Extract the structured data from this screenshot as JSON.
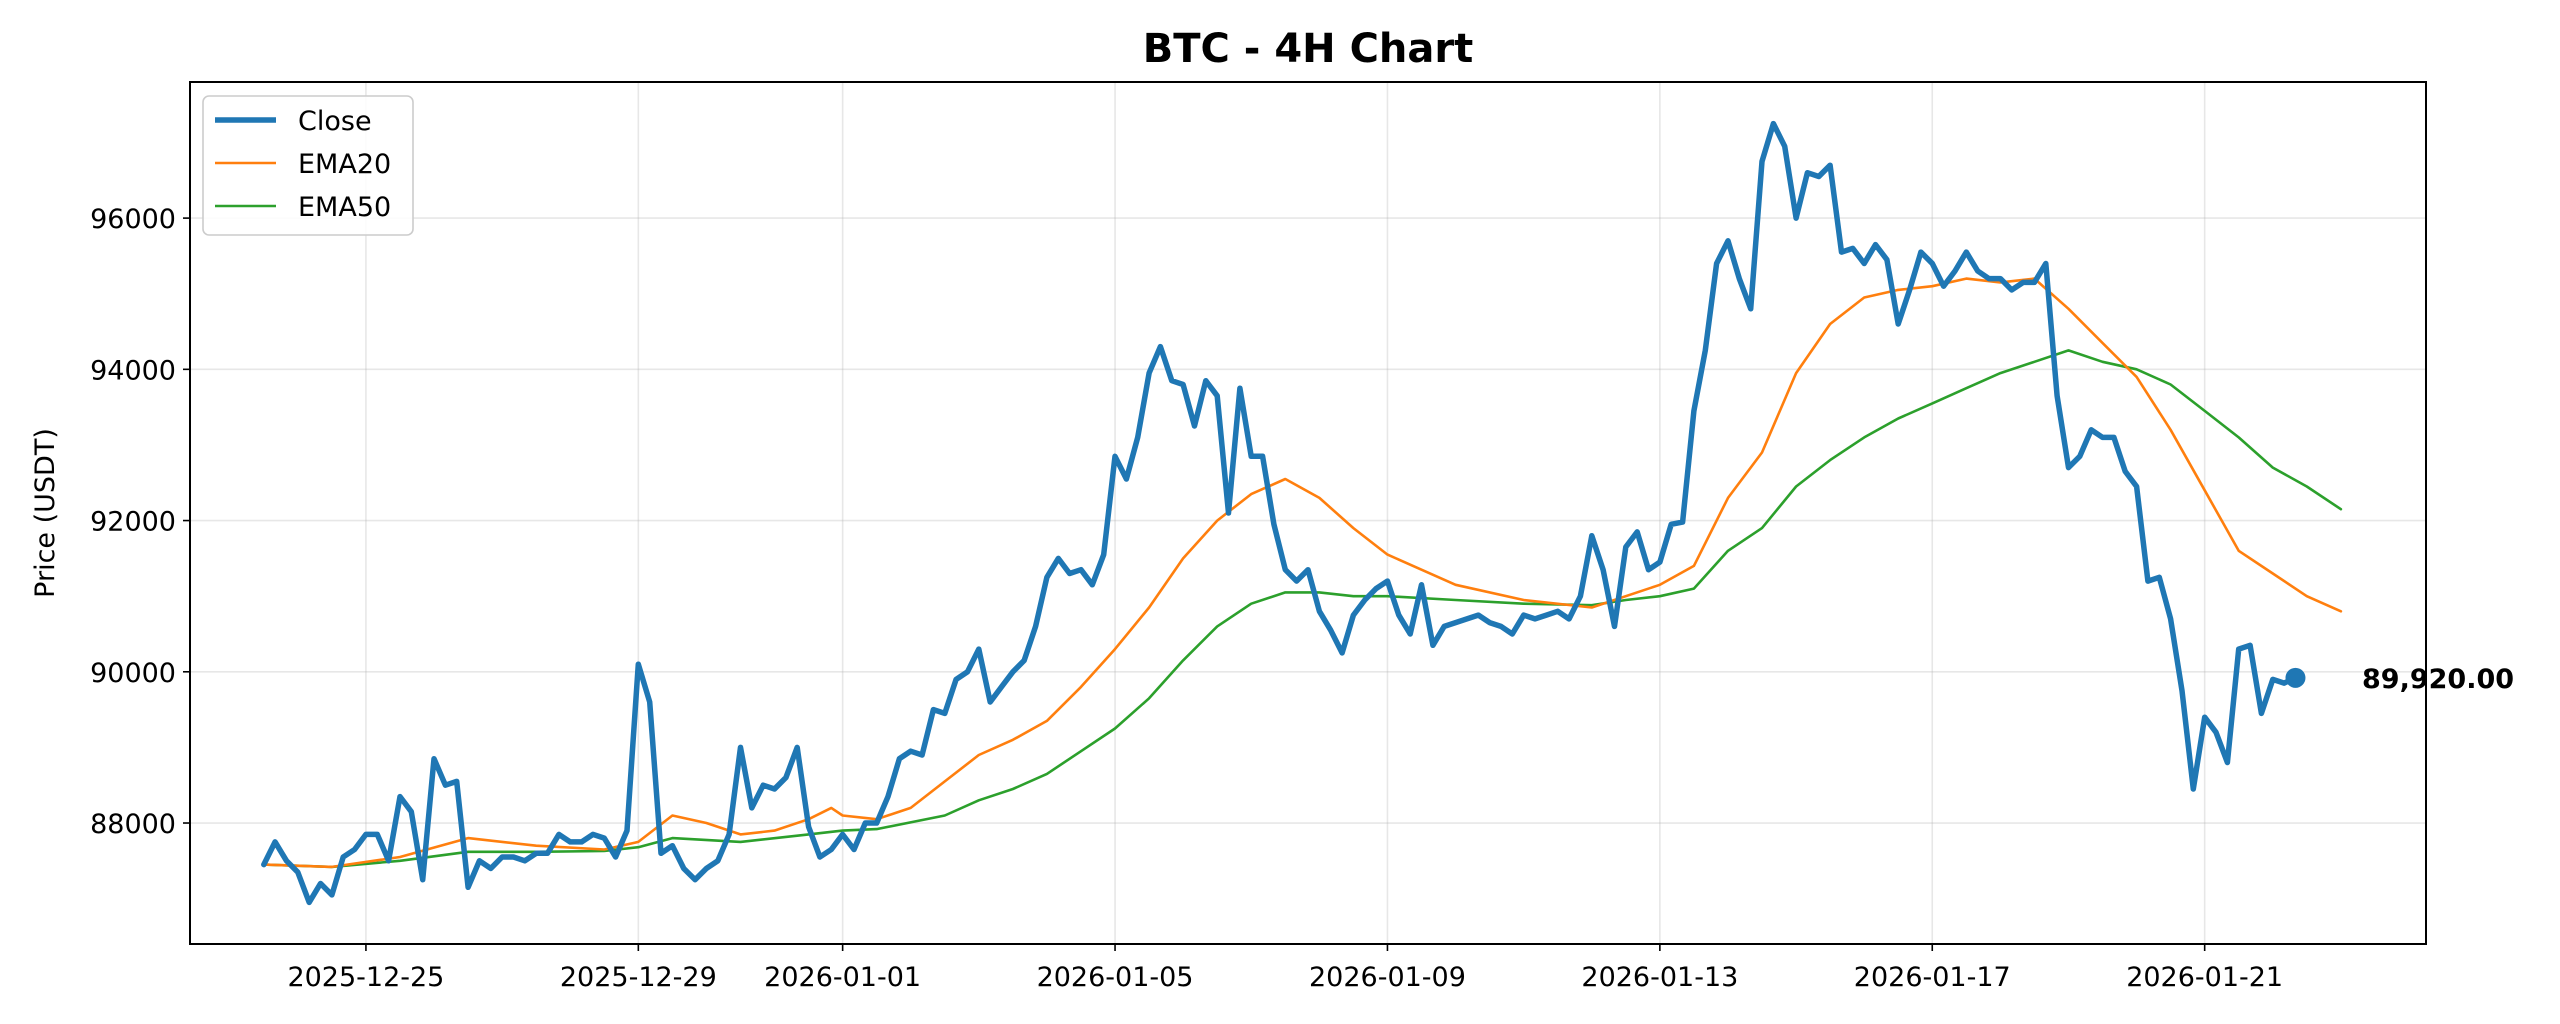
{
  "chart_data": {
    "type": "line",
    "title": "BTC - 4H Chart",
    "xlabel": "",
    "ylabel": "Price (USDT)",
    "ylim": [
      86400,
      97800
    ],
    "xlim": [
      "2025-12-22T10:00",
      "2026-01-24T06:00"
    ],
    "yticks": [
      88000,
      90000,
      92000,
      94000,
      96000
    ],
    "xticks": [
      "2025-12-25",
      "2025-12-29",
      "2026-01-01",
      "2026-01-05",
      "2026-01-09",
      "2026-01-13",
      "2026-01-17",
      "2026-01-21"
    ],
    "grid": true,
    "legend_position": "top-left",
    "colors": {
      "close": "#1f77b4",
      "ema20": "#ff7f0e",
      "ema50": "#2ca02c"
    },
    "last_value_label": "89,920.00",
    "last_value": 89920,
    "series": [
      {
        "name": "Close",
        "x_start": "2025-12-23T12:00",
        "interval_hours": 4,
        "values": [
          87450,
          87750,
          87500,
          87350,
          86950,
          87200,
          87050,
          87550,
          87650,
          87850,
          87850,
          87500,
          88350,
          88150,
          87250,
          88850,
          88500,
          88550,
          87150,
          87500,
          87400,
          87550,
          87550,
          87500,
          87600,
          87600,
          87850,
          87750,
          87750,
          87850,
          87800,
          87550,
          87900,
          90100,
          89600,
          87600,
          87700,
          87400,
          87250,
          87400,
          87500,
          87850,
          89000,
          88200,
          88500,
          88450,
          88600,
          89000,
          87950,
          87550,
          87650,
          87850,
          87650,
          88000,
          88000,
          88350,
          88850,
          88950,
          88900,
          89500,
          89450,
          89900,
          90000,
          90300,
          89600,
          89800,
          90000,
          90150,
          90600,
          91250,
          91500,
          91300,
          91350,
          91150,
          91550,
          92850,
          92550,
          93100,
          93950,
          94300,
          93850,
          93800,
          93250,
          93850,
          93650,
          92100,
          93750,
          92850,
          92850,
          91950,
          91350,
          91200,
          91350,
          90800,
          90550,
          90250,
          90750,
          90950,
          91100,
          91200,
          90750,
          90500,
          91150,
          90350,
          90600,
          90650,
          90700,
          90750,
          90650,
          90600,
          90500,
          90750,
          90700,
          90750,
          90800,
          90700,
          91000,
          91800,
          91350,
          90600,
          91650,
          91850,
          91350,
          91450,
          91950,
          91980,
          93450,
          94250,
          95400,
          95700,
          95200,
          94800,
          96750,
          97250,
          96950,
          96000,
          96600,
          96550,
          96700,
          95550,
          95600,
          95400,
          95650,
          95450,
          94600,
          95050,
          95550,
          95400,
          95100,
          95300,
          95550,
          95300,
          95200,
          95200,
          95050,
          95150,
          95150,
          95400,
          93650,
          92700,
          92850,
          93200,
          93100,
          93100,
          92650,
          92450,
          91200,
          91250,
          90700,
          89750,
          88450,
          89400,
          89200,
          88800,
          90300,
          90350,
          89450,
          89900,
          89850,
          89920
        ]
      },
      {
        "name": "EMA20",
        "points": [
          [
            "2025-12-23T12:00",
            87450
          ],
          [
            "2025-12-24T12:00",
            87420
          ],
          [
            "2025-12-25T12:00",
            87550
          ],
          [
            "2025-12-26T12:00",
            87800
          ],
          [
            "2025-12-27T12:00",
            87700
          ],
          [
            "2025-12-28T12:00",
            87650
          ],
          [
            "2025-12-29T00:00",
            87750
          ],
          [
            "2025-12-29T12:00",
            88100
          ],
          [
            "2025-12-30T00:00",
            88000
          ],
          [
            "2025-12-30T12:00",
            87850
          ],
          [
            "2025-12-31T00:00",
            87900
          ],
          [
            "2025-12-31T12:00",
            88050
          ],
          [
            "2025-12-31T20:00",
            88200
          ],
          [
            "2026-01-01T00:00",
            88100
          ],
          [
            "2026-01-01T12:00",
            88050
          ],
          [
            "2026-01-02T00:00",
            88200
          ],
          [
            "2026-01-02T12:00",
            88550
          ],
          [
            "2026-01-03T00:00",
            88900
          ],
          [
            "2026-01-03T12:00",
            89100
          ],
          [
            "2026-01-04T00:00",
            89350
          ],
          [
            "2026-01-04T12:00",
            89800
          ],
          [
            "2026-01-05T00:00",
            90300
          ],
          [
            "2026-01-05T12:00",
            90850
          ],
          [
            "2026-01-06T00:00",
            91500
          ],
          [
            "2026-01-06T12:00",
            92000
          ],
          [
            "2026-01-07T00:00",
            92350
          ],
          [
            "2026-01-07T12:00",
            92550
          ],
          [
            "2026-01-08T00:00",
            92300
          ],
          [
            "2026-01-08T12:00",
            91900
          ],
          [
            "2026-01-09T00:00",
            91550
          ],
          [
            "2026-01-09T12:00",
            91350
          ],
          [
            "2026-01-10T00:00",
            91150
          ],
          [
            "2026-01-11T00:00",
            90950
          ],
          [
            "2026-01-12T00:00",
            90850
          ],
          [
            "2026-01-13T00:00",
            91150
          ],
          [
            "2026-01-13T12:00",
            91400
          ],
          [
            "2026-01-14T00:00",
            92300
          ],
          [
            "2026-01-14T12:00",
            92900
          ],
          [
            "2026-01-15T00:00",
            93950
          ],
          [
            "2026-01-15T12:00",
            94600
          ],
          [
            "2026-01-16T00:00",
            94950
          ],
          [
            "2026-01-16T12:00",
            95050
          ],
          [
            "2026-01-17T00:00",
            95100
          ],
          [
            "2026-01-17T12:00",
            95200
          ],
          [
            "2026-01-18T00:00",
            95150
          ],
          [
            "2026-01-18T12:00",
            95200
          ],
          [
            "2026-01-19T00:00",
            94800
          ],
          [
            "2026-01-19T12:00",
            94350
          ],
          [
            "2026-01-20T00:00",
            93900
          ],
          [
            "2026-01-20T12:00",
            93200
          ],
          [
            "2026-01-21T00:00",
            92400
          ],
          [
            "2026-01-21T12:00",
            91600
          ],
          [
            "2026-01-22T00:00",
            91300
          ],
          [
            "2026-01-22T12:00",
            91000
          ],
          [
            "2026-01-23T00:00",
            90800
          ]
        ]
      },
      {
        "name": "EMA50",
        "points": [
          [
            "2025-12-23T12:00",
            87450
          ],
          [
            "2025-12-24T12:00",
            87420
          ],
          [
            "2025-12-25T12:00",
            87500
          ],
          [
            "2025-12-26T12:00",
            87620
          ],
          [
            "2025-12-27T12:00",
            87620
          ],
          [
            "2025-12-28T12:00",
            87630
          ],
          [
            "2025-12-29T00:00",
            87680
          ],
          [
            "2025-12-29T12:00",
            87800
          ],
          [
            "2025-12-30T12:00",
            87750
          ],
          [
            "2025-12-31T12:00",
            87850
          ],
          [
            "2026-01-01T00:00",
            87900
          ],
          [
            "2026-01-01T12:00",
            87920
          ],
          [
            "2026-01-02T12:00",
            88100
          ],
          [
            "2026-01-03T00:00",
            88300
          ],
          [
            "2026-01-03T12:00",
            88450
          ],
          [
            "2026-01-04T00:00",
            88650
          ],
          [
            "2026-01-04T12:00",
            88950
          ],
          [
            "2026-01-05T00:00",
            89250
          ],
          [
            "2026-01-05T12:00",
            89650
          ],
          [
            "2026-01-06T00:00",
            90150
          ],
          [
            "2026-01-06T12:00",
            90600
          ],
          [
            "2026-01-07T00:00",
            90900
          ],
          [
            "2026-01-07T12:00",
            91050
          ],
          [
            "2026-01-08T00:00",
            91050
          ],
          [
            "2026-01-08T12:00",
            91000
          ],
          [
            "2026-01-09T00:00",
            91000
          ],
          [
            "2026-01-10T00:00",
            90950
          ],
          [
            "2026-01-11T00:00",
            90900
          ],
          [
            "2026-01-12T00:00",
            90880
          ],
          [
            "2026-01-12T12:00",
            90950
          ],
          [
            "2026-01-13T00:00",
            91000
          ],
          [
            "2026-01-13T12:00",
            91100
          ],
          [
            "2026-01-14T00:00",
            91600
          ],
          [
            "2026-01-14T12:00",
            91900
          ],
          [
            "2026-01-15T00:00",
            92450
          ],
          [
            "2026-01-15T12:00",
            92800
          ],
          [
            "2026-01-16T00:00",
            93100
          ],
          [
            "2026-01-16T12:00",
            93350
          ],
          [
            "2026-01-17T00:00",
            93550
          ],
          [
            "2026-01-17T12:00",
            93750
          ],
          [
            "2026-01-18T00:00",
            93950
          ],
          [
            "2026-01-18T12:00",
            94100
          ],
          [
            "2026-01-19T00:00",
            94250
          ],
          [
            "2026-01-19T12:00",
            94100
          ],
          [
            "2026-01-20T00:00",
            94000
          ],
          [
            "2026-01-20T12:00",
            93800
          ],
          [
            "2026-01-21T00:00",
            93450
          ],
          [
            "2026-01-21T12:00",
            93100
          ],
          [
            "2026-01-22T00:00",
            92700
          ],
          [
            "2026-01-22T12:00",
            92450
          ],
          [
            "2026-01-23T00:00",
            92150
          ]
        ]
      }
    ]
  }
}
